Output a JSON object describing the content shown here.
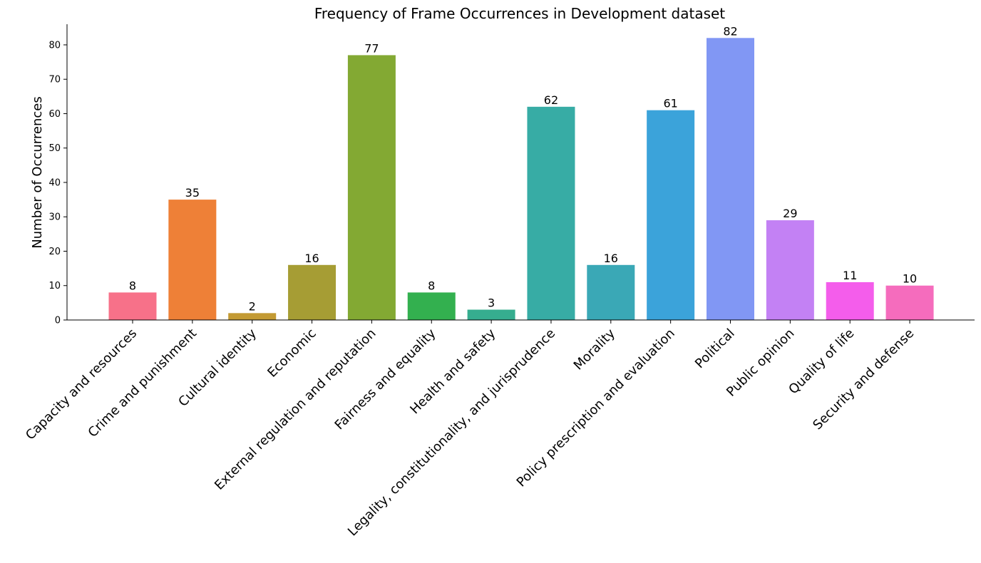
{
  "chart_data": {
    "type": "bar",
    "title": "Frequency of Frame Occurrences in Development dataset",
    "xlabel": "",
    "ylabel": "Number of Occurrences",
    "ylim": [
      0,
      86
    ],
    "yticks": [
      0,
      10,
      20,
      30,
      40,
      50,
      60,
      70,
      80
    ],
    "grid": false,
    "categories": [
      "Capacity and resources",
      "Crime and punishment",
      "Cultural identity",
      "Economic",
      "External regulation and reputation",
      "Fairness and equality",
      "Health and safety",
      "Legality, constitutionality, and jurisprudence",
      "Morality",
      "Policy prescription and evaluation",
      "Political",
      "Public opinion",
      "Quality of life",
      "Security and defense"
    ],
    "values": [
      8,
      35,
      2,
      16,
      77,
      8,
      3,
      62,
      16,
      61,
      82,
      29,
      11,
      10
    ],
    "colors": [
      "#f77189",
      "#ee8037",
      "#c39a33",
      "#a69d34",
      "#83a933",
      "#33b04f",
      "#36ad8f",
      "#37aca5",
      "#3aa8b6",
      "#3ba3da",
      "#8197f4",
      "#c381f4",
      "#f45deb",
      "#f56cbd"
    ]
  }
}
